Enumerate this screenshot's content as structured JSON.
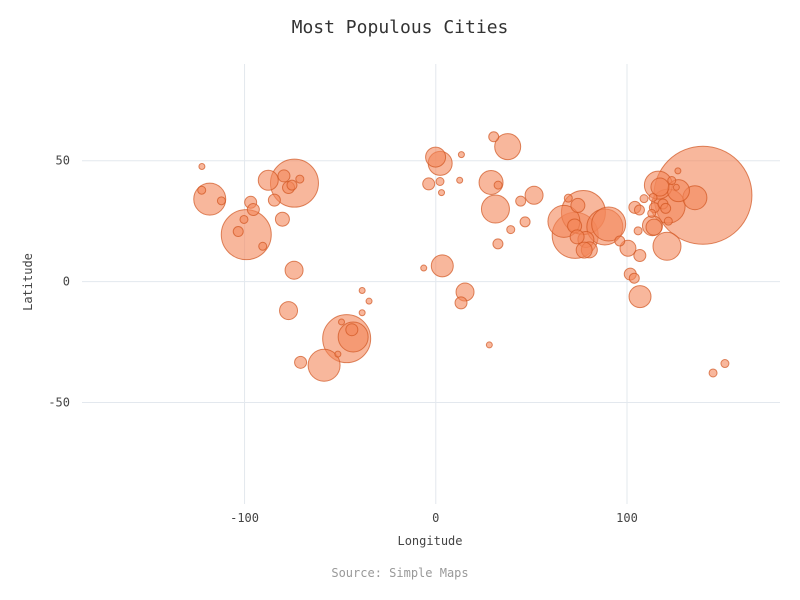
{
  "chart_data": {
    "type": "scatter",
    "title": "Most Populous Cities",
    "xlabel": "Longitude",
    "ylabel": "Latitude",
    "source": "Source: Simple Maps",
    "xlim": [
      -185,
      180
    ],
    "ylim": [
      -92,
      90
    ],
    "xticks": [
      -100,
      0,
      100
    ],
    "yticks": [
      -50,
      0,
      50
    ],
    "grid": true,
    "legend": "none",
    "colors": {
      "fill": "#f4875a",
      "stroke": "#d0541f"
    },
    "size_unit": "relative population (radius scale)",
    "points": [
      {
        "x": 139.7,
        "y": 35.7,
        "size": 49
      },
      {
        "x": -99.1,
        "y": 19.4,
        "size": 25
      },
      {
        "x": -73.9,
        "y": 40.7,
        "size": 24
      },
      {
        "x": -46.6,
        "y": -23.6,
        "size": 24
      },
      {
        "x": 72.9,
        "y": 19.1,
        "size": 23
      },
      {
        "x": 77.2,
        "y": 28.6,
        "size": 22
      },
      {
        "x": 88.4,
        "y": 22.6,
        "size": 18
      },
      {
        "x": 90.4,
        "y": 23.8,
        "size": 17
      },
      {
        "x": 121.5,
        "y": 31.2,
        "size": 17
      },
      {
        "x": 67.0,
        "y": 24.9,
        "size": 16
      },
      {
        "x": 120.9,
        "y": 14.6,
        "size": 14
      },
      {
        "x": 116.4,
        "y": 39.9,
        "size": 14
      },
      {
        "x": -58.4,
        "y": -34.6,
        "size": 16
      },
      {
        "x": -43.2,
        "y": -22.9,
        "size": 15
      },
      {
        "x": 106.8,
        "y": -6.2,
        "size": 11
      },
      {
        "x": 31.2,
        "y": 30.0,
        "size": 14
      },
      {
        "x": 28.9,
        "y": 41.0,
        "size": 12
      },
      {
        "x": 37.6,
        "y": 55.8,
        "size": 13
      },
      {
        "x": -118.2,
        "y": 34.1,
        "size": 16
      },
      {
        "x": 3.4,
        "y": 6.5,
        "size": 11
      },
      {
        "x": 2.3,
        "y": 48.9,
        "size": 12
      },
      {
        "x": -0.1,
        "y": 51.5,
        "size": 10
      },
      {
        "x": 51.4,
        "y": 35.7,
        "size": 9
      },
      {
        "x": -87.6,
        "y": 41.9,
        "size": 10
      },
      {
        "x": -77.0,
        "y": -12.0,
        "size": 9
      },
      {
        "x": -74.1,
        "y": 4.7,
        "size": 9
      },
      {
        "x": 113.3,
        "y": 23.1,
        "size": 10
      },
      {
        "x": 114.1,
        "y": 22.5,
        "size": 8
      },
      {
        "x": 126.9,
        "y": 37.6,
        "size": 11
      },
      {
        "x": 135.5,
        "y": 34.7,
        "size": 12
      },
      {
        "x": 117.2,
        "y": 39.1,
        "size": 9
      },
      {
        "x": 104.1,
        "y": 30.7,
        "size": 6
      },
      {
        "x": 100.5,
        "y": 13.8,
        "size": 8
      },
      {
        "x": 78.5,
        "y": 17.4,
        "size": 8
      },
      {
        "x": 80.3,
        "y": 13.1,
        "size": 8
      },
      {
        "x": 77.6,
        "y": 13.0,
        "size": 8
      },
      {
        "x": 72.6,
        "y": 23.0,
        "size": 7
      },
      {
        "x": 73.9,
        "y": 18.5,
        "size": 7
      },
      {
        "x": 74.3,
        "y": 31.5,
        "size": 7
      },
      {
        "x": 96.2,
        "y": 16.8,
        "size": 5
      },
      {
        "x": 101.7,
        "y": 3.1,
        "size": 6
      },
      {
        "x": 15.3,
        "y": -4.3,
        "size": 9
      },
      {
        "x": 13.2,
        "y": -8.8,
        "size": 6
      },
      {
        "x": -3.7,
        "y": 40.4,
        "size": 6
      },
      {
        "x": 2.2,
        "y": 41.4,
        "size": 4
      },
      {
        "x": 12.5,
        "y": 41.9,
        "size": 3
      },
      {
        "x": 13.4,
        "y": 52.5,
        "size": 3
      },
      {
        "x": 30.3,
        "y": 59.9,
        "size": 5
      },
      {
        "x": 32.5,
        "y": 15.6,
        "size": 5
      },
      {
        "x": 39.2,
        "y": 21.5,
        "size": 4
      },
      {
        "x": 44.4,
        "y": 33.3,
        "size": 5
      },
      {
        "x": 46.7,
        "y": 24.7,
        "size": 5
      },
      {
        "x": 28.0,
        "y": -26.2,
        "size": 3
      },
      {
        "x": 32.6,
        "y": 39.9,
        "size": 4
      },
      {
        "x": -79.4,
        "y": 43.7,
        "size": 6
      },
      {
        "x": -75.2,
        "y": 39.9,
        "size": 5
      },
      {
        "x": -71.1,
        "y": 42.4,
        "size": 4
      },
      {
        "x": -77.0,
        "y": 38.9,
        "size": 6
      },
      {
        "x": -84.4,
        "y": 33.7,
        "size": 6
      },
      {
        "x": -80.2,
        "y": 25.8,
        "size": 7
      },
      {
        "x": -96.8,
        "y": 32.8,
        "size": 6
      },
      {
        "x": -95.4,
        "y": 29.8,
        "size": 6
      },
      {
        "x": -103.3,
        "y": 20.7,
        "size": 5
      },
      {
        "x": -100.3,
        "y": 25.7,
        "size": 4
      },
      {
        "x": -122.4,
        "y": 37.8,
        "size": 4
      },
      {
        "x": -122.3,
        "y": 47.6,
        "size": 3
      },
      {
        "x": -112.1,
        "y": 33.4,
        "size": 4
      },
      {
        "x": -70.7,
        "y": -33.4,
        "size": 6
      },
      {
        "x": -38.5,
        "y": -12.9,
        "size": 3
      },
      {
        "x": -34.9,
        "y": -8.1,
        "size": 3
      },
      {
        "x": -38.5,
        "y": -3.7,
        "size": 3
      },
      {
        "x": -43.9,
        "y": -19.9,
        "size": 6
      },
      {
        "x": -49.3,
        "y": -16.7,
        "size": 3
      },
      {
        "x": -51.2,
        "y": -30.0,
        "size": 3
      },
      {
        "x": 151.2,
        "y": -33.9,
        "size": 4
      },
      {
        "x": 145.0,
        "y": -37.8,
        "size": 4
      },
      {
        "x": 106.7,
        "y": 10.8,
        "size": 6
      },
      {
        "x": 105.8,
        "y": 21.0,
        "size": 4
      },
      {
        "x": 103.8,
        "y": 1.4,
        "size": 5
      },
      {
        "x": 108.9,
        "y": 34.3,
        "size": 4
      },
      {
        "x": 114.3,
        "y": 30.6,
        "size": 5
      },
      {
        "x": 118.8,
        "y": 32.1,
        "size": 5
      },
      {
        "x": 120.2,
        "y": 30.3,
        "size": 5
      },
      {
        "x": 106.5,
        "y": 29.6,
        "size": 5
      },
      {
        "x": 123.4,
        "y": 41.8,
        "size": 4
      },
      {
        "x": 126.6,
        "y": 45.8,
        "size": 3
      },
      {
        "x": 113.6,
        "y": 34.8,
        "size": 4
      },
      {
        "x": 112.9,
        "y": 28.2,
        "size": 4
      },
      {
        "x": 125.8,
        "y": 39.0,
        "size": 3
      },
      {
        "x": 121.6,
        "y": 25.0,
        "size": 4
      },
      {
        "x": 69.3,
        "y": 34.5,
        "size": 4
      },
      {
        "x": -6.3,
        "y": 5.6,
        "size": 3
      },
      {
        "x": 3.0,
        "y": 36.8,
        "size": 3
      },
      {
        "x": -90.5,
        "y": 14.6,
        "size": 4
      }
    ]
  }
}
